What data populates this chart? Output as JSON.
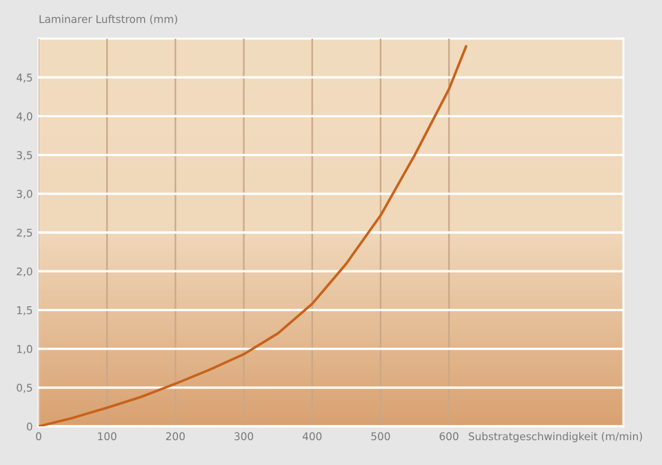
{
  "chart_data": {
    "type": "line",
    "ylabel": "Laminarer Luftstrom (mm)",
    "xlabel": "Substratgeschwindigkeit (m/min)",
    "series": [
      {
        "color": "#c8621a",
        "x": [
          0,
          50,
          100,
          150,
          200,
          250,
          300,
          350,
          400,
          450,
          500,
          550,
          600,
          625
        ],
        "values": [
          0,
          0.11,
          0.24,
          0.38,
          0.55,
          0.73,
          0.93,
          1.2,
          1.58,
          2.1,
          2.72,
          3.5,
          4.35,
          4.9
        ]
      }
    ],
    "xlim": [
      0,
      855
    ],
    "xticks": [
      0,
      100,
      200,
      300,
      400,
      500,
      600
    ],
    "ylim": [
      0,
      5.0
    ],
    "yticks": [
      {
        "value": 0,
        "label": "0"
      },
      {
        "value": 0.5,
        "label": "0,5"
      },
      {
        "value": 1.0,
        "label": "1,0"
      },
      {
        "value": 1.5,
        "label": "1,5"
      },
      {
        "value": 2.0,
        "label": "2,0"
      },
      {
        "value": 2.5,
        "label": "2,5"
      },
      {
        "value": 3.0,
        "label": "3,0"
      },
      {
        "value": 3.5,
        "label": "3,5"
      },
      {
        "value": 4.0,
        "label": "4,0"
      },
      {
        "value": 4.5,
        "label": "4,5"
      }
    ],
    "grid": true,
    "line_style": "solid",
    "marker": "none"
  }
}
